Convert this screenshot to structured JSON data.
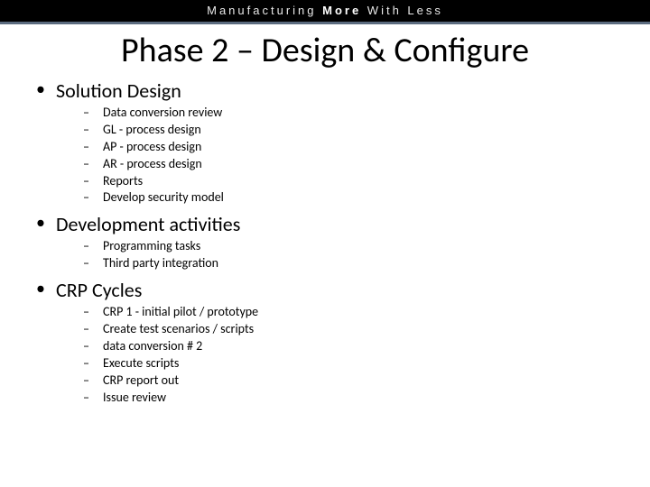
{
  "header": {
    "text_plain": "Manufacturing ",
    "text_bold": "More",
    "text_plain2": " With Less",
    "bar_bg": "#000000",
    "bar_fg": "#e8e8e8",
    "underline_color": "#5b6b7f"
  },
  "title": "Phase 2 – Design & Configure",
  "sections": [
    {
      "label": "Solution Design",
      "items": [
        "Data conversion review",
        "GL - process design",
        "AP - process design",
        "AR - process design",
        "Reports",
        "Develop security model"
      ]
    },
    {
      "label": "Development activities",
      "items": [
        "Programming tasks",
        "Third party integration"
      ]
    },
    {
      "label": "CRP Cycles",
      "items": [
        "CRP 1 - initial pilot / prototype",
        "Create test scenarios / scripts",
        "data conversion # 2",
        "Execute scripts",
        "CRP report out",
        "Issue review"
      ]
    }
  ],
  "colors": {
    "background": "#ffffff",
    "text": "#000000"
  },
  "fonts": {
    "title_size_pt": 38,
    "level1_size_pt": 22,
    "level2_size_pt": 14
  }
}
